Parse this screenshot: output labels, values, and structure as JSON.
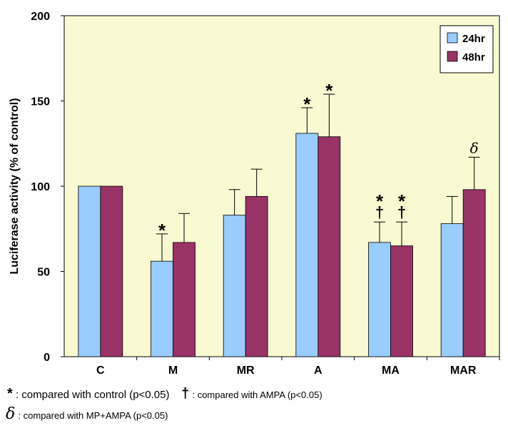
{
  "chart_data": {
    "type": "bar",
    "ylabel": "Luciferase activity (% of control)",
    "ylim": [
      0,
      200
    ],
    "yticks": [
      0,
      50,
      100,
      150,
      200
    ],
    "grid": false,
    "legend_position": "top-right",
    "categories": [
      "C",
      "M",
      "MR",
      "A",
      "MA",
      "MAR"
    ],
    "series": [
      {
        "name": "24hr",
        "color": "#99ccff",
        "values": [
          100,
          56,
          83,
          131,
          67,
          78
        ],
        "errors": [
          0,
          16,
          15,
          15,
          12,
          16
        ]
      },
      {
        "name": "48hr",
        "color": "#993366",
        "values": [
          100,
          67,
          94,
          129,
          65,
          98
        ],
        "errors": [
          0,
          17,
          16,
          25,
          14,
          19
        ]
      }
    ],
    "annotations": [
      {
        "category": "M",
        "series": "24hr",
        "marks": [
          "*"
        ]
      },
      {
        "category": "A",
        "series": "24hr",
        "marks": [
          "*"
        ]
      },
      {
        "category": "A",
        "series": "48hr",
        "marks": [
          "*"
        ]
      },
      {
        "category": "MA",
        "series": "24hr",
        "marks": [
          "*",
          "†"
        ]
      },
      {
        "category": "MA",
        "series": "48hr",
        "marks": [
          "*",
          "†"
        ]
      },
      {
        "category": "MAR",
        "series": "48hr",
        "marks": [
          "δ"
        ]
      }
    ],
    "plot_background": "#fafad2"
  },
  "footnotes": {
    "star_symbol": "*",
    "star_text": ": compared with control (p<0.05)",
    "dagger_symbol": "†",
    "dagger_text": ": compared with AMPA (p<0.05)",
    "delta_symbol": "δ",
    "delta_text": ": compared with MP+AMPA (p<0.05)"
  }
}
